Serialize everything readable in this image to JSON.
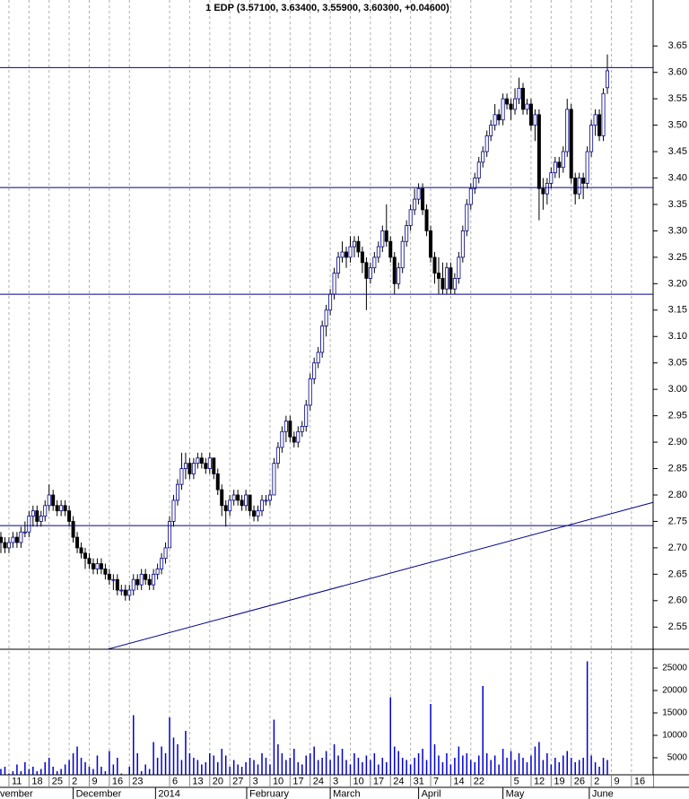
{
  "chart_data": {
    "type": "candlestick",
    "title": "1 EDP (3.57100, 3.63400, 3.55900, 3.60300, +0.04600)",
    "ohlc": [
      [
        2.72,
        2.73,
        2.69,
        2.71
      ],
      [
        2.71,
        2.72,
        2.69,
        2.7
      ],
      [
        2.7,
        2.72,
        2.69,
        2.71
      ],
      [
        2.71,
        2.73,
        2.7,
        2.72
      ],
      [
        2.72,
        2.73,
        2.7,
        2.71
      ],
      [
        2.71,
        2.74,
        2.7,
        2.73
      ],
      [
        2.73,
        2.75,
        2.72,
        2.73
      ],
      [
        2.73,
        2.77,
        2.72,
        2.76
      ],
      [
        2.76,
        2.78,
        2.74,
        2.77
      ],
      [
        2.77,
        2.78,
        2.74,
        2.75
      ],
      [
        2.75,
        2.77,
        2.74,
        2.76
      ],
      [
        2.76,
        2.79,
        2.75,
        2.78
      ],
      [
        2.78,
        2.82,
        2.77,
        2.8
      ],
      [
        2.8,
        2.81,
        2.77,
        2.78
      ],
      [
        2.78,
        2.79,
        2.76,
        2.77
      ],
      [
        2.77,
        2.79,
        2.76,
        2.78
      ],
      [
        2.78,
        2.79,
        2.76,
        2.77
      ],
      [
        2.77,
        2.78,
        2.74,
        2.75
      ],
      [
        2.75,
        2.76,
        2.71,
        2.72
      ],
      [
        2.72,
        2.73,
        2.69,
        2.7
      ],
      [
        2.7,
        2.71,
        2.68,
        2.69
      ],
      [
        2.69,
        2.7,
        2.66,
        2.68
      ],
      [
        2.68,
        2.69,
        2.66,
        2.67
      ],
      [
        2.67,
        2.68,
        2.65,
        2.66
      ],
      [
        2.66,
        2.68,
        2.65,
        2.67
      ],
      [
        2.67,
        2.68,
        2.65,
        2.66
      ],
      [
        2.66,
        2.67,
        2.64,
        2.65
      ],
      [
        2.65,
        2.66,
        2.63,
        2.64
      ],
      [
        2.64,
        2.65,
        2.62,
        2.64
      ],
      [
        2.64,
        2.65,
        2.61,
        2.62
      ],
      [
        2.62,
        2.63,
        2.61,
        2.62
      ],
      [
        2.62,
        2.63,
        2.6,
        2.61
      ],
      [
        2.61,
        2.63,
        2.6,
        2.62
      ],
      [
        2.62,
        2.65,
        2.61,
        2.64
      ],
      [
        2.64,
        2.65,
        2.62,
        2.63
      ],
      [
        2.63,
        2.66,
        2.62,
        2.65
      ],
      [
        2.65,
        2.66,
        2.63,
        2.64
      ],
      [
        2.64,
        2.65,
        2.62,
        2.63
      ],
      [
        2.63,
        2.66,
        2.62,
        2.65
      ],
      [
        2.65,
        2.67,
        2.64,
        2.66
      ],
      [
        2.66,
        2.69,
        2.65,
        2.68
      ],
      [
        2.68,
        2.71,
        2.67,
        2.7
      ],
      [
        2.7,
        2.76,
        2.7,
        2.75
      ],
      [
        2.75,
        2.8,
        2.74,
        2.79
      ],
      [
        2.79,
        2.83,
        2.78,
        2.82
      ],
      [
        2.82,
        2.88,
        2.81,
        2.85
      ],
      [
        2.85,
        2.88,
        2.83,
        2.86
      ],
      [
        2.86,
        2.87,
        2.83,
        2.84
      ],
      [
        2.84,
        2.87,
        2.83,
        2.86
      ],
      [
        2.86,
        2.88,
        2.85,
        2.87
      ],
      [
        2.87,
        2.88,
        2.85,
        2.86
      ],
      [
        2.86,
        2.87,
        2.84,
        2.85
      ],
      [
        2.85,
        2.88,
        2.84,
        2.87
      ],
      [
        2.87,
        2.87,
        2.83,
        2.84
      ],
      [
        2.84,
        2.85,
        2.8,
        2.81
      ],
      [
        2.81,
        2.82,
        2.76,
        2.78
      ],
      [
        2.78,
        2.79,
        2.74,
        2.77
      ],
      [
        2.77,
        2.8,
        2.76,
        2.79
      ],
      [
        2.79,
        2.81,
        2.78,
        2.8
      ],
      [
        2.8,
        2.81,
        2.78,
        2.79
      ],
      [
        2.79,
        2.8,
        2.77,
        2.78
      ],
      [
        2.78,
        2.81,
        2.77,
        2.8
      ],
      [
        2.8,
        2.8,
        2.76,
        2.77
      ],
      [
        2.77,
        2.78,
        2.75,
        2.76
      ],
      [
        2.76,
        2.78,
        2.75,
        2.77
      ],
      [
        2.77,
        2.8,
        2.76,
        2.79
      ],
      [
        2.79,
        2.8,
        2.78,
        2.79
      ],
      [
        2.79,
        2.81,
        2.78,
        2.8
      ],
      [
        2.8,
        2.87,
        2.8,
        2.86
      ],
      [
        2.86,
        2.9,
        2.85,
        2.89
      ],
      [
        2.89,
        2.93,
        2.88,
        2.92
      ],
      [
        2.92,
        2.95,
        2.9,
        2.94
      ],
      [
        2.94,
        2.95,
        2.9,
        2.91
      ],
      [
        2.91,
        2.92,
        2.89,
        2.9
      ],
      [
        2.9,
        2.93,
        2.89,
        2.92
      ],
      [
        2.92,
        2.94,
        2.91,
        2.93
      ],
      [
        2.93,
        2.98,
        2.92,
        2.97
      ],
      [
        2.97,
        3.03,
        2.96,
        3.02
      ],
      [
        3.02,
        3.06,
        3.01,
        3.05
      ],
      [
        3.05,
        3.08,
        3.04,
        3.07
      ],
      [
        3.07,
        3.13,
        3.06,
        3.12
      ],
      [
        3.12,
        3.16,
        3.1,
        3.15
      ],
      [
        3.15,
        3.19,
        3.14,
        3.18
      ],
      [
        3.18,
        3.23,
        3.17,
        3.22
      ],
      [
        3.22,
        3.26,
        3.21,
        3.25
      ],
      [
        3.25,
        3.28,
        3.24,
        3.26
      ],
      [
        3.26,
        3.27,
        3.23,
        3.25
      ],
      [
        3.25,
        3.29,
        3.24,
        3.27
      ],
      [
        3.27,
        3.29,
        3.25,
        3.28
      ],
      [
        3.28,
        3.29,
        3.25,
        3.26
      ],
      [
        3.26,
        3.27,
        3.22,
        3.24
      ],
      [
        3.24,
        3.25,
        3.15,
        3.21
      ],
      [
        3.21,
        3.24,
        3.2,
        3.23
      ],
      [
        3.23,
        3.26,
        3.22,
        3.25
      ],
      [
        3.25,
        3.28,
        3.24,
        3.27
      ],
      [
        3.27,
        3.31,
        3.26,
        3.3
      ],
      [
        3.3,
        3.35,
        3.27,
        3.28
      ],
      [
        3.28,
        3.29,
        3.24,
        3.25
      ],
      [
        3.25,
        3.26,
        3.18,
        3.2
      ],
      [
        3.2,
        3.24,
        3.19,
        3.23
      ],
      [
        3.23,
        3.29,
        3.22,
        3.28
      ],
      [
        3.28,
        3.32,
        3.27,
        3.31
      ],
      [
        3.31,
        3.35,
        3.3,
        3.34
      ],
      [
        3.34,
        3.38,
        3.33,
        3.36
      ],
      [
        3.36,
        3.39,
        3.35,
        3.38
      ],
      [
        3.38,
        3.39,
        3.33,
        3.34
      ],
      [
        3.34,
        3.35,
        3.29,
        3.3
      ],
      [
        3.3,
        3.31,
        3.24,
        3.25
      ],
      [
        3.25,
        3.26,
        3.2,
        3.22
      ],
      [
        3.22,
        3.25,
        3.18,
        3.21
      ],
      [
        3.21,
        3.24,
        3.18,
        3.19
      ],
      [
        3.19,
        3.24,
        3.18,
        3.23
      ],
      [
        3.23,
        3.24,
        3.18,
        3.19
      ],
      [
        3.19,
        3.22,
        3.18,
        3.21
      ],
      [
        3.21,
        3.26,
        3.2,
        3.25
      ],
      [
        3.25,
        3.31,
        3.24,
        3.3
      ],
      [
        3.3,
        3.36,
        3.29,
        3.35
      ],
      [
        3.35,
        3.39,
        3.34,
        3.38
      ],
      [
        3.38,
        3.41,
        3.37,
        3.4
      ],
      [
        3.4,
        3.44,
        3.39,
        3.43
      ],
      [
        3.43,
        3.46,
        3.42,
        3.45
      ],
      [
        3.45,
        3.49,
        3.44,
        3.48
      ],
      [
        3.48,
        3.51,
        3.47,
        3.5
      ],
      [
        3.5,
        3.54,
        3.49,
        3.52
      ],
      [
        3.52,
        3.53,
        3.5,
        3.51
      ],
      [
        3.51,
        3.56,
        3.5,
        3.55
      ],
      [
        3.55,
        3.56,
        3.53,
        3.54
      ],
      [
        3.54,
        3.55,
        3.51,
        3.53
      ],
      [
        3.53,
        3.57,
        3.52,
        3.55
      ],
      [
        3.55,
        3.59,
        3.54,
        3.57
      ],
      [
        3.57,
        3.58,
        3.52,
        3.53
      ],
      [
        3.53,
        3.55,
        3.52,
        3.54
      ],
      [
        3.54,
        3.55,
        3.49,
        3.5
      ],
      [
        3.5,
        3.53,
        3.47,
        3.52
      ],
      [
        3.52,
        3.53,
        3.32,
        3.38
      ],
      [
        3.38,
        3.4,
        3.34,
        3.37
      ],
      [
        3.37,
        3.4,
        3.35,
        3.39
      ],
      [
        3.39,
        3.42,
        3.38,
        3.41
      ],
      [
        3.41,
        3.44,
        3.4,
        3.43
      ],
      [
        3.43,
        3.44,
        3.4,
        3.42
      ],
      [
        3.42,
        3.46,
        3.41,
        3.45
      ],
      [
        3.45,
        3.55,
        3.44,
        3.53
      ],
      [
        3.53,
        3.54,
        3.39,
        3.4
      ],
      [
        3.4,
        3.41,
        3.35,
        3.37
      ],
      [
        3.37,
        3.41,
        3.36,
        3.4
      ],
      [
        3.4,
        3.41,
        3.36,
        3.39
      ],
      [
        3.39,
        3.46,
        3.38,
        3.45
      ],
      [
        3.45,
        3.51,
        3.44,
        3.5
      ],
      [
        3.5,
        3.53,
        3.48,
        3.52
      ],
      [
        3.52,
        3.53,
        3.47,
        3.48
      ],
      [
        3.48,
        3.57,
        3.47,
        3.56
      ],
      [
        3.571,
        3.634,
        3.559,
        3.603
      ]
    ],
    "up_color": "#ffffff",
    "down_color": "#000000",
    "line_color": "#00008b",
    "ylim": [
      2.508,
      3.737
    ],
    "yticks": [
      2.55,
      {
        "value": 2.6,
        "label": "2.60"
      },
      2.65,
      {
        "value": 2.7,
        "label": "2.70"
      },
      2.75,
      {
        "value": 2.8,
        "label": "2.80"
      },
      2.85,
      {
        "value": 2.9,
        "label": "2.90"
      },
      2.95,
      {
        "value": 3.0,
        "label": "3.00"
      },
      3.05,
      {
        "value": 3.1,
        "label": "3.10"
      },
      3.15,
      {
        "value": 3.2,
        "label": "3.20"
      },
      3.25,
      {
        "value": 3.3,
        "label": "3.30"
      },
      3.35,
      {
        "value": 3.4,
        "label": "3.40"
      },
      3.45,
      {
        "value": 3.5,
        "label": "3.50"
      },
      3.55,
      {
        "value": 3.6,
        "label": "3.60"
      },
      3.65
    ],
    "xlim": [
      -0.223,
      162.39
    ],
    "xticks": [
      {
        "value": 2,
        "label": "11"
      },
      {
        "value": 7,
        "label": "18"
      },
      {
        "value": 12,
        "label": "25"
      },
      {
        "value": 17,
        "label": "2"
      },
      {
        "value": 22,
        "label": "9"
      },
      {
        "value": 27,
        "label": "16"
      },
      {
        "value": 32,
        "label": "23"
      },
      {
        "value": 42,
        "label": "6"
      },
      {
        "value": 47,
        "label": "13"
      },
      {
        "value": 52,
        "label": "20"
      },
      {
        "value": 57,
        "label": "27"
      },
      {
        "value": 62,
        "label": "3"
      },
      {
        "value": 67,
        "label": "10"
      },
      {
        "value": 72,
        "label": "17"
      },
      {
        "value": 77,
        "label": "24"
      },
      {
        "value": 82,
        "label": "3"
      },
      {
        "value": 87,
        "label": "10"
      },
      {
        "value": 92,
        "label": "17"
      },
      {
        "value": 97,
        "label": "24"
      },
      {
        "value": 102,
        "label": "31"
      },
      {
        "value": 107,
        "label": "7"
      },
      {
        "value": 112,
        "label": "14"
      },
      {
        "value": 117,
        "label": "22"
      },
      {
        "value": 127,
        "label": "5"
      },
      {
        "value": 132,
        "label": "12"
      },
      {
        "value": 137,
        "label": "19"
      },
      {
        "value": 142,
        "label": "26"
      },
      {
        "value": 147,
        "label": "2"
      },
      {
        "value": 152,
        "label": "9"
      },
      {
        "value": 157,
        "label": "16"
      }
    ],
    "month_labels": [
      {
        "value": -0.9,
        "label": "vember"
      },
      {
        "value": 18,
        "label": "December"
      },
      {
        "value": 38.5,
        "label": "2014"
      },
      {
        "value": 61.2,
        "label": "February"
      },
      {
        "value": 82,
        "label": "March"
      },
      {
        "value": 104,
        "label": "April"
      },
      {
        "value": 125,
        "label": "May"
      },
      {
        "value": 146.5,
        "label": "June"
      }
    ],
    "grid": true,
    "hlines": [
      3.609,
      3.382,
      3.18,
      2.742
    ],
    "trendline": {
      "x": [
        26.6,
        162.39
      ],
      "y": [
        2.508,
        2.786
      ]
    },
    "volume": {
      "color": "#0000cc",
      "ylim": [
        0,
        29200
      ],
      "yticks": [
        5000,
        10000,
        15000,
        20000,
        25000
      ],
      "values": [
        2500,
        3000,
        1500,
        2000,
        3500,
        2000,
        4000,
        2500,
        3000,
        2000,
        2500,
        4000,
        5000,
        3000,
        2000,
        2500,
        3500,
        4500,
        6000,
        7500,
        5000,
        4000,
        3000,
        2500,
        5500,
        3000,
        2000,
        6500,
        3500,
        5000,
        1500,
        1000,
        3000,
        14500,
        6000,
        2000,
        3500,
        2500,
        8500,
        5000,
        7500,
        6000,
        14000,
        9500,
        8000,
        4500,
        11000,
        6000,
        5000,
        4500,
        3500,
        4000,
        6000,
        5500,
        4000,
        7000,
        5500,
        3000,
        4500,
        3500,
        3000,
        4000,
        5000,
        4500,
        3500,
        6000,
        5000,
        3500,
        13500,
        8000,
        6000,
        4500,
        5000,
        7000,
        4000,
        3500,
        5500,
        6000,
        7500,
        4500,
        5000,
        6500,
        4500,
        8000,
        5500,
        7000,
        4500,
        3500,
        6000,
        5000,
        4000,
        5500,
        4500,
        6000,
        3500,
        5000,
        4000,
        18500,
        7500,
        6500,
        5000,
        4500,
        3500,
        5000,
        6000,
        7000,
        4500,
        17000,
        8000,
        5500,
        4000,
        6000,
        3500,
        5000,
        7500,
        5500,
        6000,
        4500,
        4000,
        5500,
        21000,
        6000,
        4500,
        5500,
        3500,
        7000,
        5000,
        6500,
        4500,
        6000,
        5000,
        4000,
        5500,
        7500,
        8500,
        4500,
        6000,
        3500,
        5000,
        4000,
        5500,
        6500,
        5000,
        4000,
        4500,
        5000,
        26500,
        5500,
        4000,
        3000,
        5000,
        4500
      ]
    }
  }
}
